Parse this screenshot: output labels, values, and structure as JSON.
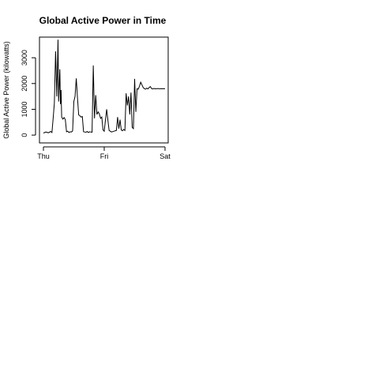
{
  "chart_data": {
    "type": "line",
    "title": "Global Active Power in Time",
    "xlabel": "",
    "ylabel": "Global Active Power (kilowatts)",
    "x_ticks": [
      "Thu",
      "Fri",
      "Sat"
    ],
    "y_ticks": [
      0,
      1000,
      2000,
      3000
    ],
    "xlim": [
      0,
      2
    ],
    "ylim": [
      -150,
      3800
    ],
    "grid": false,
    "line_color": "#000000",
    "series": [
      {
        "x": [
          0.0,
          0.04,
          0.08,
          0.12,
          0.14,
          0.16,
          0.18,
          0.2,
          0.22,
          0.24,
          0.25,
          0.27,
          0.28,
          0.29,
          0.3,
          0.32,
          0.34,
          0.36,
          0.38,
          0.4,
          0.42,
          0.44,
          0.46,
          0.48,
          0.5,
          0.52,
          0.54,
          0.56,
          0.58,
          0.6,
          0.62,
          0.64,
          0.66,
          0.68,
          0.7,
          0.72,
          0.74,
          0.76,
          0.78,
          0.8,
          0.82,
          0.84,
          0.86,
          0.88,
          0.9,
          0.92,
          0.94,
          0.96,
          0.98,
          1.0,
          1.04,
          1.08,
          1.12,
          1.16,
          1.2,
          1.22,
          1.24,
          1.26,
          1.28,
          1.3,
          1.32,
          1.34,
          1.36,
          1.38,
          1.4,
          1.42,
          1.44,
          1.46,
          1.48,
          1.5,
          1.52,
          1.54,
          1.56,
          1.58,
          1.6,
          1.62,
          1.64,
          1.66,
          1.68,
          1.7,
          1.72,
          1.74,
          1.76,
          1.78,
          1.8,
          1.82,
          1.84,
          1.86,
          1.88,
          1.9,
          1.92,
          1.94,
          1.96,
          1.98,
          2.0
        ],
        "y": [
          80,
          120,
          90,
          140,
          100,
          650,
          1250,
          3250,
          1500,
          3700,
          1300,
          2550,
          1200,
          1750,
          700,
          620,
          680,
          600,
          130,
          150,
          100,
          130,
          120,
          160,
          1300,
          1500,
          2200,
          1450,
          780,
          750,
          700,
          720,
          130,
          120,
          110,
          140,
          100,
          130,
          120,
          110,
          2700,
          650,
          1550,
          800,
          900,
          820,
          650,
          700,
          200,
          150,
          1000,
          180,
          120,
          150,
          180,
          700,
          250,
          600,
          200,
          170,
          220,
          180,
          1620,
          1150,
          1500,
          800,
          1650,
          300,
          250,
          2180,
          900,
          1800,
          1780,
          1900,
          2050,
          1950,
          1850,
          1800,
          1780,
          1820,
          1790,
          1850,
          1880,
          1800,
          1790,
          1810,
          1795,
          1800,
          1805,
          1800,
          1798,
          1802,
          1800,
          1801,
          1800
        ]
      }
    ]
  }
}
